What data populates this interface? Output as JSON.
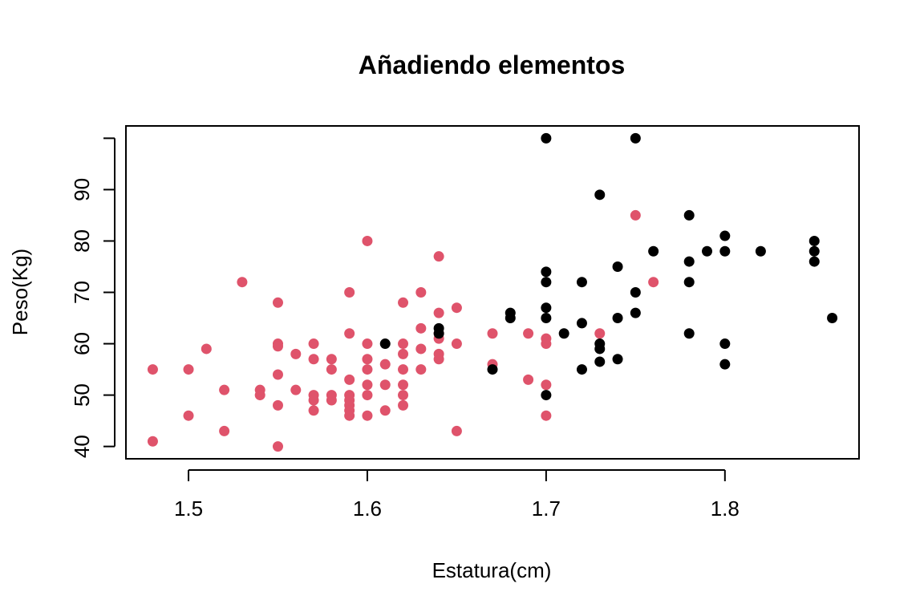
{
  "chart_data": {
    "type": "scatter",
    "title": "Añadiendo elementos",
    "xlabel": "Estatura(cm)",
    "ylabel": "Peso(Kg)",
    "xlim": [
      1.465,
      1.875
    ],
    "ylim": [
      37.6,
      102.4
    ],
    "x_ticks": [
      1.5,
      1.6,
      1.7,
      1.8
    ],
    "x_tick_labels": [
      "1.5",
      "1.6",
      "1.7",
      "1.8"
    ],
    "y_ticks": [
      40,
      50,
      60,
      70,
      80,
      90
    ],
    "y_tick_labels": [
      "40",
      "50",
      "60",
      "70",
      "80",
      "90"
    ],
    "grid": false,
    "series": [
      {
        "color": "#DF536B",
        "points": [
          [
            1.48,
            55
          ],
          [
            1.48,
            41
          ],
          [
            1.5,
            55
          ],
          [
            1.5,
            46
          ],
          [
            1.51,
            59
          ],
          [
            1.52,
            51
          ],
          [
            1.52,
            43
          ],
          [
            1.53,
            72
          ],
          [
            1.54,
            51
          ],
          [
            1.54,
            50
          ],
          [
            1.55,
            68
          ],
          [
            1.55,
            60
          ],
          [
            1.55,
            59.5
          ],
          [
            1.55,
            54
          ],
          [
            1.55,
            48
          ],
          [
            1.55,
            40
          ],
          [
            1.56,
            58
          ],
          [
            1.56,
            51
          ],
          [
            1.57,
            60
          ],
          [
            1.57,
            57
          ],
          [
            1.57,
            50
          ],
          [
            1.57,
            49
          ],
          [
            1.57,
            47
          ],
          [
            1.58,
            57
          ],
          [
            1.58,
            55
          ],
          [
            1.58,
            50
          ],
          [
            1.58,
            49
          ],
          [
            1.59,
            70
          ],
          [
            1.59,
            62
          ],
          [
            1.59,
            53
          ],
          [
            1.59,
            50
          ],
          [
            1.59,
            49
          ],
          [
            1.59,
            48
          ],
          [
            1.59,
            47
          ],
          [
            1.59,
            46
          ],
          [
            1.6,
            80
          ],
          [
            1.6,
            60
          ],
          [
            1.6,
            57
          ],
          [
            1.6,
            55
          ],
          [
            1.6,
            52
          ],
          [
            1.6,
            50
          ],
          [
            1.6,
            46
          ],
          [
            1.61,
            56
          ],
          [
            1.61,
            52
          ],
          [
            1.61,
            47
          ],
          [
            1.62,
            68
          ],
          [
            1.62,
            60
          ],
          [
            1.62,
            58
          ],
          [
            1.62,
            55
          ],
          [
            1.62,
            52
          ],
          [
            1.62,
            50
          ],
          [
            1.62,
            48
          ],
          [
            1.63,
            70
          ],
          [
            1.63,
            63
          ],
          [
            1.63,
            59
          ],
          [
            1.63,
            55
          ],
          [
            1.64,
            77
          ],
          [
            1.64,
            66
          ],
          [
            1.64,
            62
          ],
          [
            1.64,
            61
          ],
          [
            1.64,
            58
          ],
          [
            1.64,
            57
          ],
          [
            1.65,
            67
          ],
          [
            1.65,
            60
          ],
          [
            1.65,
            43
          ],
          [
            1.67,
            62
          ],
          [
            1.67,
            56
          ],
          [
            1.69,
            62
          ],
          [
            1.69,
            53
          ],
          [
            1.7,
            61
          ],
          [
            1.7,
            60
          ],
          [
            1.7,
            52
          ],
          [
            1.7,
            46
          ],
          [
            1.73,
            62
          ],
          [
            1.75,
            85
          ],
          [
            1.76,
            72
          ]
        ]
      },
      {
        "color": "#000000",
        "points": [
          [
            1.61,
            60
          ],
          [
            1.64,
            63
          ],
          [
            1.64,
            62
          ],
          [
            1.67,
            55
          ],
          [
            1.68,
            66
          ],
          [
            1.68,
            65
          ],
          [
            1.7,
            100
          ],
          [
            1.7,
            74
          ],
          [
            1.7,
            72
          ],
          [
            1.7,
            67
          ],
          [
            1.7,
            65
          ],
          [
            1.7,
            50
          ],
          [
            1.71,
            62
          ],
          [
            1.72,
            72
          ],
          [
            1.72,
            64
          ],
          [
            1.72,
            55
          ],
          [
            1.73,
            89
          ],
          [
            1.73,
            60
          ],
          [
            1.73,
            59
          ],
          [
            1.73,
            56.5
          ],
          [
            1.74,
            75
          ],
          [
            1.74,
            65
          ],
          [
            1.74,
            57
          ],
          [
            1.75,
            100
          ],
          [
            1.75,
            70
          ],
          [
            1.75,
            66
          ],
          [
            1.76,
            78
          ],
          [
            1.78,
            85
          ],
          [
            1.78,
            76
          ],
          [
            1.78,
            72
          ],
          [
            1.78,
            62
          ],
          [
            1.79,
            78
          ],
          [
            1.8,
            81
          ],
          [
            1.8,
            78
          ],
          [
            1.8,
            60
          ],
          [
            1.8,
            56
          ],
          [
            1.82,
            78
          ],
          [
            1.85,
            80
          ],
          [
            1.85,
            78
          ],
          [
            1.85,
            76
          ],
          [
            1.86,
            65
          ]
        ]
      }
    ]
  }
}
